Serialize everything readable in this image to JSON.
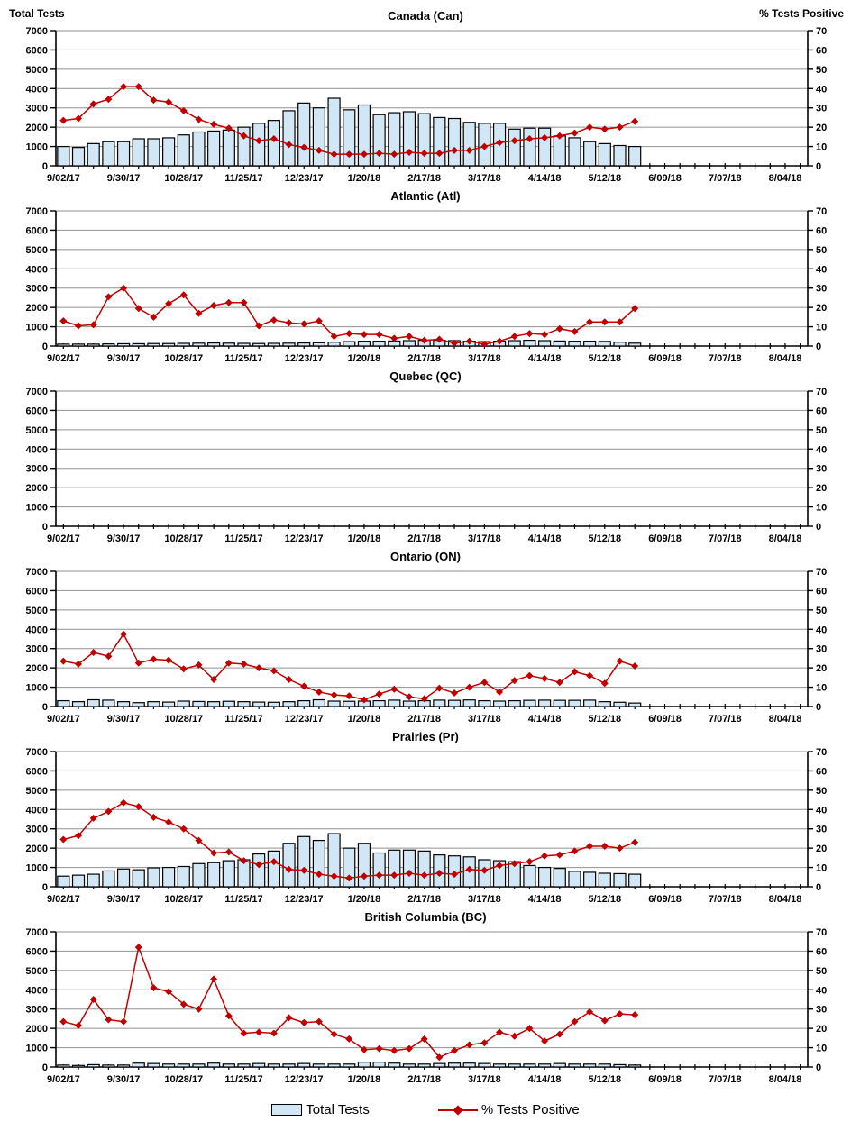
{
  "header": {
    "left_axis_title": "Total Tests",
    "right_axis_title": "% Tests Positive"
  },
  "legend": {
    "bars_label": "Total Tests",
    "line_label": "% Tests Positive"
  },
  "colors": {
    "bar_fill": "#D2E7F5",
    "bar_stroke": "#000000",
    "line": "#C00000",
    "grid": "#909090",
    "axis": "#000000"
  },
  "axes": {
    "left_ticks": [
      "7000",
      "6000",
      "5000",
      "4000",
      "3000",
      "2000",
      "1000",
      "0"
    ],
    "right_ticks": [
      "70",
      "60",
      "50",
      "40",
      "30",
      "20",
      "10",
      "0"
    ],
    "left_max": 7000,
    "right_max": 70,
    "x_labels": [
      "9/02/17",
      "9/30/17",
      "10/28/17",
      "11/25/17",
      "12/23/17",
      "1/20/18",
      "2/17/18",
      "3/17/18",
      "4/14/18",
      "5/12/18",
      "6/09/18",
      "7/07/18",
      "8/04/18"
    ],
    "weeks_shown": 50,
    "label_every_n_weeks": 4
  },
  "chart_data": [
    {
      "type": "combo-bar-line",
      "title": "Canada (Can)",
      "bars_series": "Total Tests",
      "line_series": "% Tests Positive",
      "x_start": "9/02/17",
      "x_step": "weekly",
      "bars": [
        1000,
        950,
        1150,
        1250,
        1250,
        1400,
        1400,
        1450,
        1600,
        1750,
        1800,
        1850,
        2000,
        2200,
        2350,
        2850,
        3250,
        3000,
        3500,
        2900,
        3150,
        2650,
        2750,
        2800,
        2700,
        2500,
        2450,
        2250,
        2200,
        2200,
        1900,
        1950,
        1950,
        1550,
        1450,
        1250,
        1150,
        1050,
        1000
      ],
      "pct": [
        23.5,
        24.5,
        32,
        34.5,
        41,
        41,
        34,
        33,
        28.5,
        24,
        21.5,
        19.5,
        15.5,
        13,
        14,
        11,
        9.5,
        8,
        6,
        6,
        6,
        6.5,
        6,
        7,
        6.5,
        6.5,
        8,
        8,
        10,
        12,
        13,
        14,
        14.5,
        15.5,
        17,
        20,
        19,
        20,
        23
      ]
    },
    {
      "type": "combo-bar-line",
      "title": "Atlantic (Atl)",
      "bars_series": "Total Tests",
      "line_series": "% Tests Positive",
      "x_start": "9/02/17",
      "x_step": "weekly",
      "bars": [
        100,
        100,
        100,
        110,
        120,
        120,
        130,
        130,
        140,
        150,
        160,
        150,
        140,
        130,
        140,
        150,
        160,
        170,
        200,
        230,
        250,
        250,
        260,
        280,
        300,
        300,
        280,
        250,
        230,
        250,
        280,
        300,
        280,
        260,
        250,
        250,
        240,
        200,
        150
      ],
      "pct": [
        13,
        10.5,
        11,
        25.5,
        30,
        19.5,
        15,
        22,
        26.5,
        17,
        21,
        22.5,
        22.5,
        10.5,
        13.5,
        12,
        11.5,
        13,
        5,
        6.5,
        6,
        6,
        4,
        5,
        3,
        3.5,
        1.5,
        2.5,
        1,
        2.5,
        5,
        6.5,
        6,
        9,
        7.5,
        12.5,
        12.5,
        12.5,
        19.5
      ]
    },
    {
      "type": "combo-bar-line",
      "title": "Quebec (QC)",
      "bars_series": "Total Tests",
      "line_series": "% Tests Positive",
      "x_start": "9/02/17",
      "x_step": "weekly",
      "bars": [],
      "pct": []
    },
    {
      "type": "combo-bar-line",
      "title": "Ontario (ON)",
      "bars_series": "Total Tests",
      "line_series": "% Tests Positive",
      "x_start": "9/02/17",
      "x_step": "weekly",
      "bars": [
        300,
        250,
        350,
        330,
        250,
        200,
        250,
        230,
        280,
        260,
        250,
        270,
        250,
        230,
        220,
        250,
        300,
        350,
        280,
        270,
        280,
        300,
        330,
        280,
        300,
        330,
        320,
        340,
        300,
        280,
        300,
        320,
        330,
        320,
        320,
        330,
        250,
        220,
        180
      ],
      "pct": [
        23.5,
        22,
        28,
        26,
        37.5,
        22.5,
        24.5,
        24,
        19.5,
        21.5,
        14,
        22.5,
        22,
        20,
        18.5,
        14,
        10.5,
        7.5,
        6,
        5.5,
        3.5,
        6.5,
        9,
        5,
        4,
        9.5,
        7,
        10,
        12.5,
        7.5,
        13.5,
        16,
        14.5,
        12.5,
        18,
        16,
        12,
        23.5,
        21
      ]
    },
    {
      "type": "combo-bar-line",
      "title": "Prairies (Pr)",
      "bars_series": "Total Tests",
      "line_series": "% Tests Positive",
      "x_start": "9/02/17",
      "x_step": "weekly",
      "bars": [
        550,
        600,
        650,
        820,
        920,
        880,
        980,
        1000,
        1050,
        1200,
        1250,
        1350,
        1400,
        1700,
        1850,
        2250,
        2600,
        2400,
        2750,
        2000,
        2250,
        1750,
        1900,
        1900,
        1850,
        1650,
        1600,
        1550,
        1400,
        1350,
        1300,
        1100,
        1000,
        950,
        800,
        750,
        700,
        680,
        650
      ],
      "pct": [
        24.5,
        26.5,
        35.5,
        39,
        43.5,
        41.5,
        36,
        33.5,
        30,
        24,
        17.5,
        18,
        13.5,
        11.5,
        13,
        9,
        8.5,
        6.5,
        5.5,
        4.5,
        5.5,
        6,
        6,
        7,
        6,
        7,
        6.5,
        9,
        8.5,
        11,
        12,
        13,
        16,
        16.5,
        18.5,
        21,
        21,
        20,
        23
      ]
    },
    {
      "type": "combo-bar-line",
      "title": "British Columbia (BC)",
      "bars_series": "Total Tests",
      "line_series": "% Tests Positive",
      "x_start": "9/02/17",
      "x_step": "weekly",
      "bars": [
        100,
        80,
        120,
        100,
        100,
        200,
        180,
        150,
        150,
        150,
        200,
        150,
        150,
        180,
        150,
        150,
        180,
        150,
        150,
        150,
        250,
        250,
        200,
        150,
        150,
        180,
        200,
        200,
        180,
        150,
        150,
        150,
        150,
        180,
        150,
        150,
        150,
        120,
        100
      ],
      "pct": [
        23.5,
        21.5,
        35,
        24.5,
        23.5,
        62,
        41,
        39,
        32.5,
        30,
        45.5,
        26.5,
        17.5,
        18,
        17.5,
        25.5,
        23,
        23.5,
        17,
        14.5,
        9,
        9.5,
        8.5,
        9.5,
        14.5,
        5,
        8.5,
        11.5,
        12.5,
        18,
        16,
        20,
        13.5,
        17,
        23.5,
        28.5,
        24,
        27.5,
        27
      ]
    }
  ]
}
